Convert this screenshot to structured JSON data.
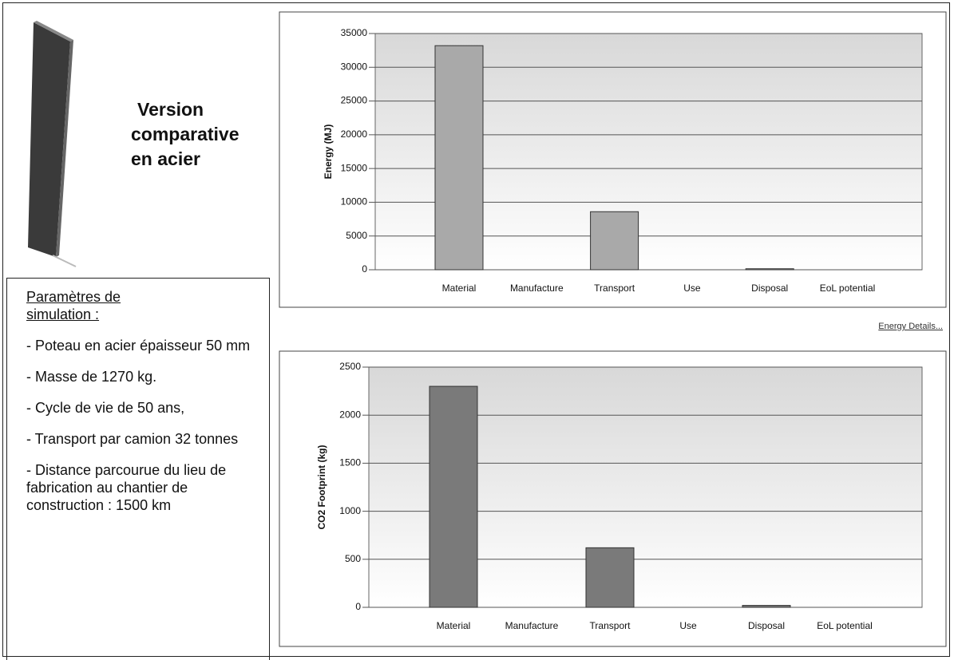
{
  "panel": {
    "heading": [
      "Version",
      "comparative",
      "en acier"
    ],
    "params_title": "Paramètres de simulation :",
    "params": [
      "- Poteau en acier épaisseur 50 mm",
      "- Masse de 1270 kg.",
      "- Cycle de vie de 50 ans,",
      "- Transport par camion 32 tonnes",
      "- Distance parcourue du lieu de fabrication au chantier de construction : 1500 km"
    ],
    "link": "Energy Details..."
  },
  "chart_data": [
    {
      "type": "bar",
      "ylabel": "Energy (MJ)",
      "categories": [
        "Material",
        "Manufacture",
        "Transport",
        "Use",
        "Disposal",
        "EoL potential"
      ],
      "values": [
        33200,
        0,
        8600,
        0,
        150,
        0
      ],
      "color": "#a9a9a9",
      "ylim": [
        0,
        35000
      ],
      "yticks": [
        0,
        5000,
        10000,
        15000,
        20000,
        25000,
        30000,
        35000
      ],
      "grid": true
    },
    {
      "type": "bar",
      "ylabel": "CO2 Footprint (kg)",
      "categories": [
        "Material",
        "Manufacture",
        "Transport",
        "Use",
        "Disposal",
        "EoL potential"
      ],
      "values": [
        2300,
        0,
        620,
        0,
        20,
        0
      ],
      "color": "#7a7a7a",
      "ylim": [
        0,
        2500
      ],
      "yticks": [
        0,
        500,
        1000,
        1500,
        2000,
        2500
      ],
      "grid": true
    }
  ]
}
